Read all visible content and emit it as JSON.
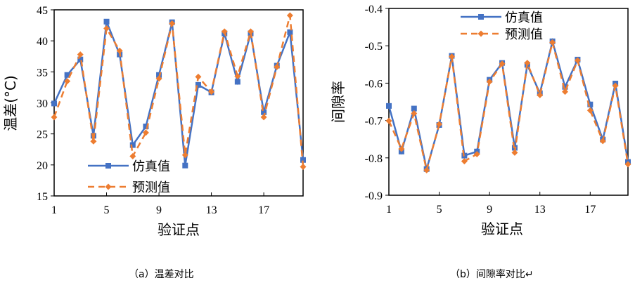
{
  "colors": {
    "simulated": "#4472C4",
    "predicted": "#ED7D31"
  },
  "chart_data": [
    {
      "type": "line",
      "caption": "（a）温差对比",
      "xlabel": "验证点",
      "ylabel": "温差(°C)",
      "x": [
        1,
        2,
        3,
        4,
        5,
        6,
        7,
        8,
        9,
        10,
        11,
        12,
        13,
        14,
        15,
        16,
        17,
        18,
        19,
        20
      ],
      "xticks": [
        1,
        5,
        9,
        13,
        17
      ],
      "ylim": [
        15,
        45
      ],
      "yticks": [
        15,
        20,
        25,
        30,
        35,
        40,
        45
      ],
      "legend_position": "bottom-left",
      "grid": false,
      "series": [
        {
          "name": "仿真值",
          "marker": "square",
          "style": "solid",
          "values": [
            29.9,
            34.5,
            37.0,
            24.7,
            43.1,
            37.8,
            23.2,
            26.2,
            34.5,
            43.0,
            19.9,
            32.9,
            31.7,
            41.2,
            33.4,
            41.2,
            28.5,
            36.0,
            41.4,
            20.8
          ]
        },
        {
          "name": "预测值",
          "marker": "diamond",
          "style": "dashed",
          "values": [
            27.7,
            33.5,
            37.8,
            23.8,
            42.0,
            38.4,
            21.4,
            25.2,
            33.9,
            42.8,
            21.6,
            34.2,
            31.8,
            41.5,
            34.3,
            41.5,
            27.7,
            35.8,
            44.1,
            19.7
          ]
        }
      ]
    },
    {
      "type": "line",
      "caption": "（b）间隙率对比↵",
      "xlabel": "验证点",
      "ylabel": "间隙率",
      "x": [
        1,
        2,
        3,
        4,
        5,
        6,
        7,
        8,
        9,
        10,
        11,
        12,
        13,
        14,
        15,
        16,
        17,
        18,
        19,
        20
      ],
      "xticks": [
        1,
        5,
        9,
        13,
        17
      ],
      "ylim": [
        -0.9,
        -0.4
      ],
      "yticks": [
        -0.9,
        -0.8,
        -0.7,
        -0.6,
        -0.5,
        -0.4
      ],
      "legend_position": "top-center",
      "grid": false,
      "series": [
        {
          "name": "仿真值",
          "marker": "square",
          "style": "solid",
          "values": [
            -0.661,
            -0.783,
            -0.668,
            -0.83,
            -0.712,
            -0.527,
            -0.794,
            -0.783,
            -0.591,
            -0.546,
            -0.773,
            -0.551,
            -0.627,
            -0.488,
            -0.61,
            -0.537,
            -0.657,
            -0.751,
            -0.601,
            -0.811
          ]
        },
        {
          "name": "预测值",
          "marker": "diamond",
          "style": "dashed",
          "values": [
            -0.701,
            -0.776,
            -0.681,
            -0.833,
            -0.71,
            -0.529,
            -0.809,
            -0.79,
            -0.596,
            -0.548,
            -0.786,
            -0.546,
            -0.632,
            -0.491,
            -0.623,
            -0.539,
            -0.673,
            -0.755,
            -0.607,
            -0.817
          ]
        }
      ]
    }
  ]
}
